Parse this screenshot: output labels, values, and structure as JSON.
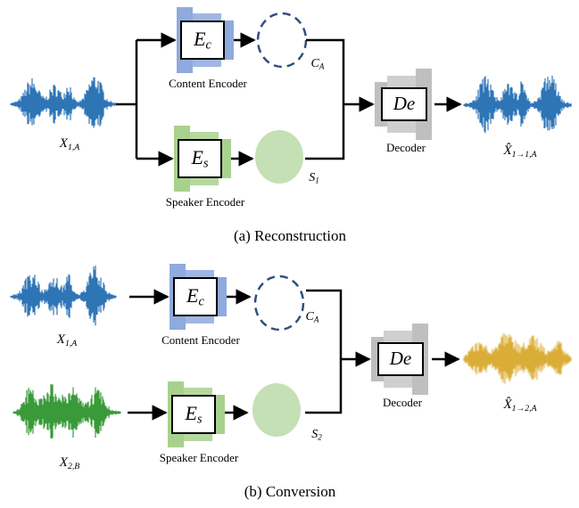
{
  "panel_a": {
    "caption": "(a)  Reconstruction",
    "input": {
      "main": "X",
      "sub": "1,A"
    },
    "content_encoder": {
      "symbol": {
        "main": "E",
        "sub": "c"
      },
      "label": "Content Encoder"
    },
    "content_code": {
      "main": "C",
      "sub": "A"
    },
    "speaker_encoder": {
      "symbol": {
        "main": "E",
        "sub": "s"
      },
      "label": "Speaker Encoder"
    },
    "speaker_code": {
      "main": "S",
      "sub": "1"
    },
    "decoder": {
      "symbol": "De",
      "label": "Decoder"
    },
    "output": {
      "main": "X̂",
      "sub": "1→1,A"
    }
  },
  "panel_b": {
    "caption": "(b)  Conversion",
    "inputs": [
      {
        "main": "X",
        "sub": "1,A"
      },
      {
        "main": "X",
        "sub": "2,B"
      }
    ],
    "content_encoder": {
      "symbol": {
        "main": "E",
        "sub": "c"
      },
      "label": "Content Encoder"
    },
    "content_code": {
      "main": "C",
      "sub": "A"
    },
    "speaker_encoder": {
      "symbol": {
        "main": "E",
        "sub": "s"
      },
      "label": "Speaker Encoder"
    },
    "speaker_code": {
      "main": "S",
      "sub": "2"
    },
    "decoder": {
      "symbol": "De",
      "label": "Decoder"
    },
    "output": {
      "main": "X̂",
      "sub": "1→2,A"
    }
  }
}
